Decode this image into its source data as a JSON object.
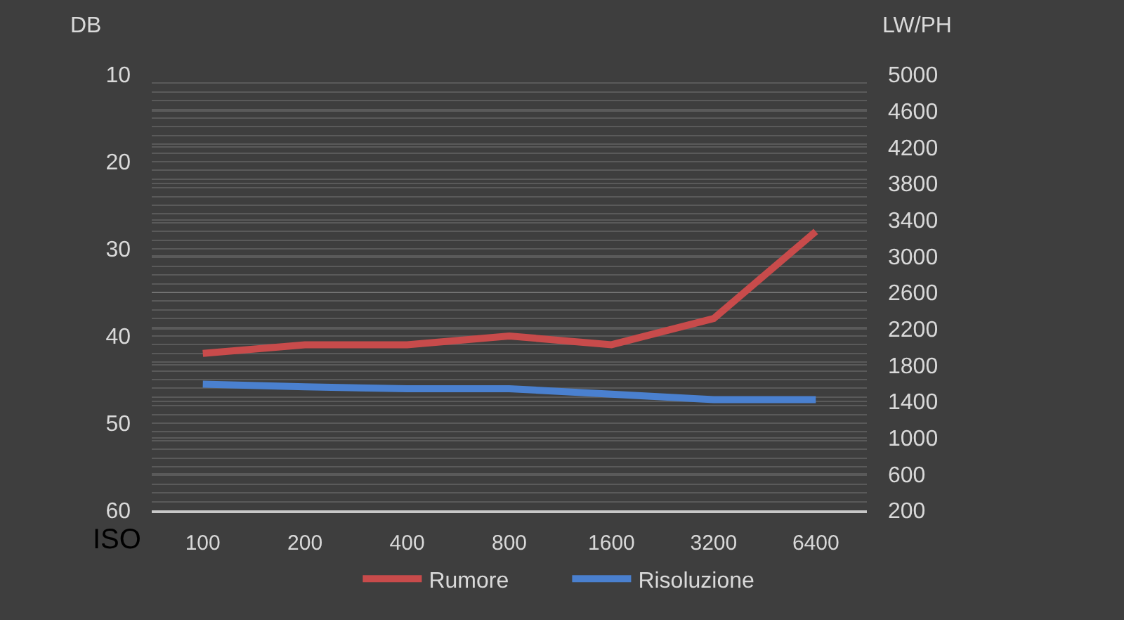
{
  "chart_data": {
    "type": "line",
    "ylabel": "DB",
    "y2label": "LW/PH",
    "xlabel": "ISO",
    "categories": [
      "100",
      "200",
      "400",
      "800",
      "1600",
      "3200",
      "6400"
    ],
    "series": [
      {
        "name": "Rumore",
        "color": "#c84b4b",
        "values": [
          42,
          41,
          41,
          40,
          41,
          38,
          28
        ]
      },
      {
        "name": "Risoluzione",
        "color": "#4a80cf",
        "axis": "y2",
        "values": [
          1590,
          1560,
          1540,
          1540,
          1480,
          1420,
          1420
        ]
      }
    ],
    "ylim": [
      60,
      10
    ],
    "yticks": [
      10,
      {
        "value": 11,
        "label": null
      },
      {
        "value": 12,
        "label": null
      },
      {
        "value": 13,
        "label": null
      },
      {
        "value": 14,
        "label": null
      },
      {
        "value": 15,
        "label": null
      },
      {
        "value": 16,
        "label": null
      },
      {
        "value": 17,
        "label": null
      },
      {
        "value": 18,
        "label": null
      },
      {
        "value": 19,
        "label": null
      },
      20,
      {
        "value": 21,
        "label": null
      },
      {
        "value": 22,
        "label": null
      },
      {
        "value": 23,
        "label": null
      },
      {
        "value": 24,
        "label": null
      },
      {
        "value": 25,
        "label": null
      },
      {
        "value": 26,
        "label": null
      },
      {
        "value": 27,
        "label": null
      },
      {
        "value": 28,
        "label": null
      },
      {
        "value": 29,
        "label": null
      },
      30,
      {
        "value": 31,
        "label": null
      },
      {
        "value": 32,
        "label": null
      },
      {
        "value": 33,
        "label": null
      },
      {
        "value": 34,
        "label": null
      },
      {
        "value": 35,
        "label": null
      },
      {
        "value": 36,
        "label": null
      },
      {
        "value": 37,
        "label": null
      },
      {
        "value": 38,
        "label": null
      },
      {
        "value": 39,
        "label": null
      },
      40,
      {
        "value": 41,
        "label": null
      },
      {
        "value": 42,
        "label": null
      },
      {
        "value": 43,
        "label": null
      },
      {
        "value": 44,
        "label": null
      },
      {
        "value": 45,
        "label": null
      },
      {
        "value": 46,
        "label": null
      },
      {
        "value": 47,
        "label": null
      },
      {
        "value": 48,
        "label": null
      },
      {
        "value": 49,
        "label": null
      },
      50,
      {
        "value": 51,
        "label": null
      },
      {
        "value": 52,
        "label": null
      },
      {
        "value": 53,
        "label": null
      },
      {
        "value": 54,
        "label": null
      },
      {
        "value": 55,
        "label": null
      },
      {
        "value": 56,
        "label": null
      },
      {
        "value": 57,
        "label": null
      },
      {
        "value": 58,
        "label": null
      },
      {
        "value": 59,
        "label": null
      },
      60
    ],
    "y2lim": [
      200,
      5000
    ],
    "y2ticks": [
      200,
      600,
      1000,
      1400,
      1800,
      2200,
      2600,
      3000,
      3400,
      3800,
      4200,
      4600,
      5000
    ],
    "grid": "y",
    "legend": "bottom",
    "marker": "none",
    "line_style": "solid"
  }
}
